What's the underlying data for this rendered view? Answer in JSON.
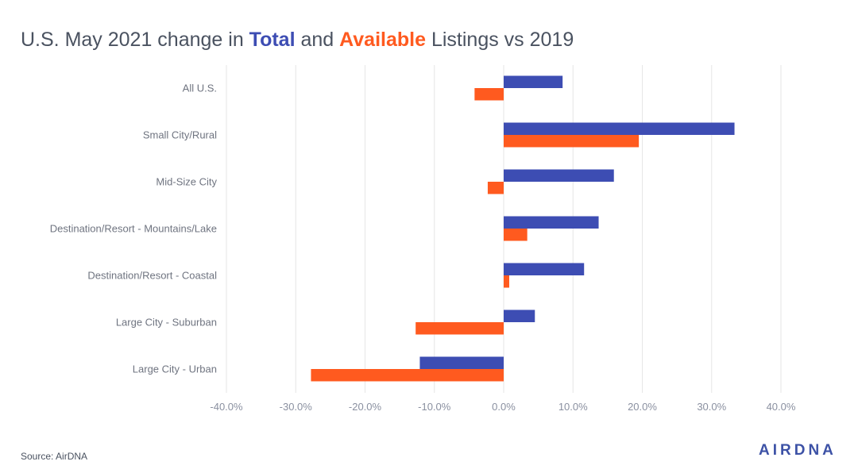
{
  "title": {
    "prefix": "U.S. May 2021 change in ",
    "total": "Total",
    "middle": " and ",
    "available": "Available",
    "suffix": " Listings vs 2019"
  },
  "source": "Source: AirDNA",
  "logo": "AIRDNA",
  "colors": {
    "total": "#3d4db3",
    "available": "#ff5a1f",
    "grid": "#e6e6e6",
    "title_text": "#4a5260"
  },
  "chart_data": {
    "type": "bar",
    "orientation": "horizontal",
    "title": "U.S. May 2021 change in Total and Available Listings vs 2019",
    "categories": [
      "All U.S.",
      "Small City/Rural",
      "Mid-Size City",
      "Destination/Resort - Mountains/Lake",
      "Destination/Resort - Coastal",
      "Large City - Suburban",
      "Large City - Urban"
    ],
    "series": [
      {
        "name": "Total",
        "values": [
          8.5,
          33.3,
          15.9,
          13.7,
          11.6,
          4.5,
          -12.1
        ]
      },
      {
        "name": "Available",
        "values": [
          -4.2,
          19.5,
          -2.3,
          3.4,
          0.8,
          -12.7,
          -27.8
        ]
      }
    ],
    "xlim": [
      -40,
      40
    ],
    "xticks": [
      -40,
      -30,
      -20,
      -10,
      0,
      10,
      20,
      30,
      40
    ],
    "xtick_labels": [
      "-40.0%",
      "-30.0%",
      "-20.0%",
      "-10.0%",
      "0.0%",
      "10.0%",
      "20.0%",
      "30.0%",
      "40.0%"
    ],
    "grid": true,
    "legend": "none"
  }
}
